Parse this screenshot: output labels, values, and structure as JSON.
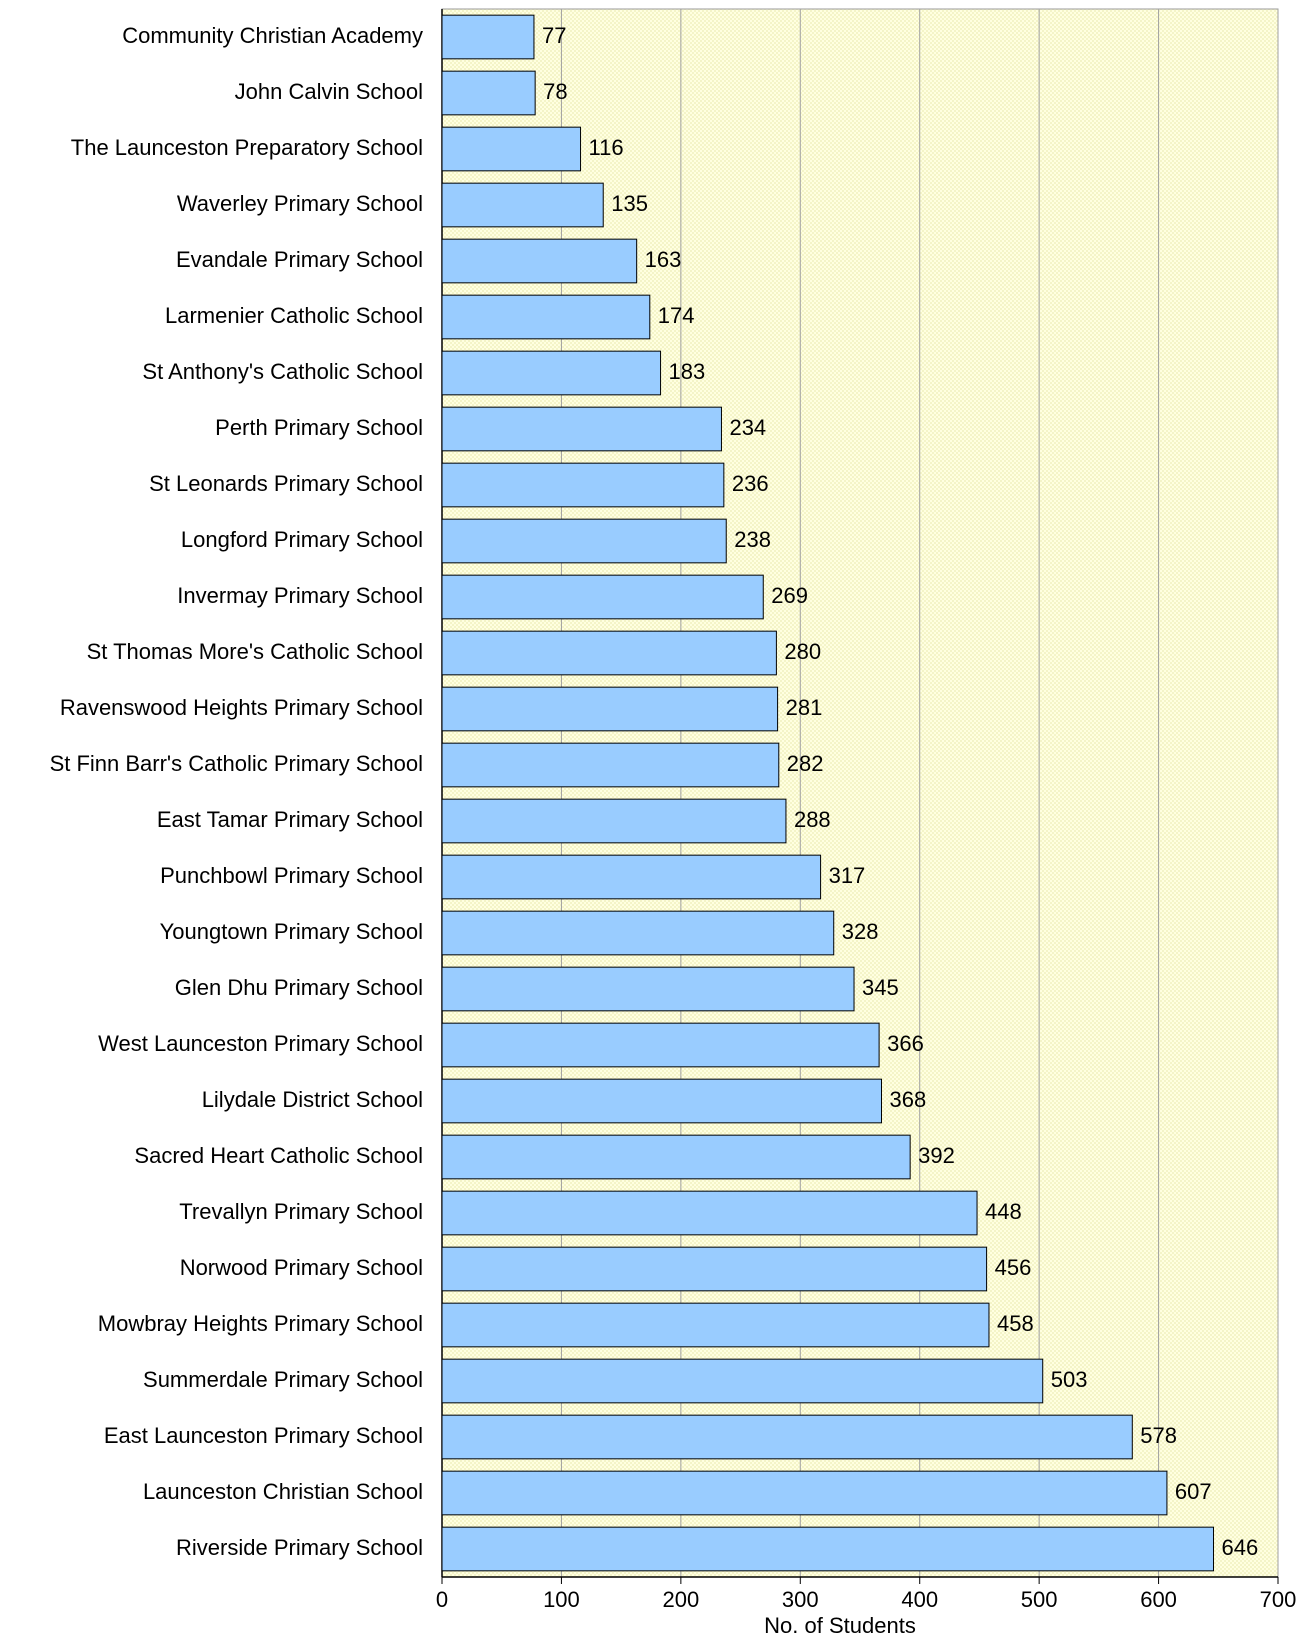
{
  "chart_data": {
    "type": "bar",
    "orientation": "horizontal",
    "x_label": "No. of Students",
    "categories": [
      "Community Christian Academy",
      "John Calvin School",
      "The Launceston Preparatory School",
      "Waverley Primary School",
      "Evandale Primary School",
      "Larmenier Catholic School",
      "St Anthony's Catholic School",
      "Perth Primary School",
      "St Leonards Primary School",
      "Longford Primary School",
      "Invermay Primary School",
      "St Thomas More's Catholic School",
      "Ravenswood Heights Primary School",
      "St Finn Barr's Catholic Primary School",
      "East Tamar Primary School",
      "Punchbowl Primary School",
      "Youngtown Primary School",
      "Glen Dhu Primary School",
      "West Launceston Primary School",
      "Lilydale District School",
      "Sacred Heart Catholic School",
      "Trevallyn Primary School",
      "Norwood Primary School",
      "Mowbray Heights Primary School",
      "Summerdale Primary School",
      "East Launceston Primary School",
      "Launceston Christian School",
      "Riverside Primary School"
    ],
    "values": [
      77,
      78,
      116,
      135,
      163,
      174,
      183,
      234,
      236,
      238,
      269,
      280,
      281,
      282,
      288,
      317,
      328,
      345,
      366,
      368,
      392,
      448,
      456,
      458,
      503,
      578,
      607,
      646
    ],
    "color": "#99ccff",
    "xlim": [
      0,
      700
    ],
    "xticks": [
      0,
      100,
      200,
      300,
      400,
      500,
      600,
      700
    ],
    "grid": true
  }
}
